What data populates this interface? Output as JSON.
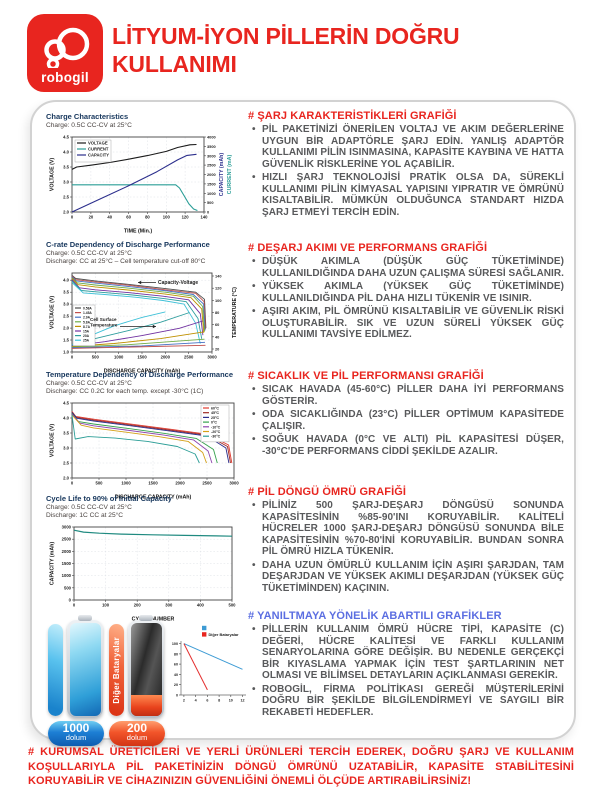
{
  "header": {
    "logo_text": "robogil",
    "title_line1": "LİTYUM-İYON PİLLERİN DOĞRU",
    "title_line2": "KULLANIMI"
  },
  "colors": {
    "brand_red": "#e8251f",
    "heading_blue": "#5b6ee1",
    "body_gray": "#58595b",
    "chart_title_navy": "#16365c",
    "teal": "#2a9d96",
    "navy": "#2b2e8c"
  },
  "sections": [
    {
      "heading": "# ŞARJ KARAKTERİSTİKLERİ GRAFİĞİ",
      "heading_color": "#e8251f",
      "bullets": [
        "PİL PAKETİNİZİ ÖNERİLEN VOLTAJ VE AKIM DEĞERLERİNE UYGUN BİR ADAPTÖRLE ŞARJ EDİN. YANLIŞ ADAPTÖR KULLANIMI PİLİN ISINMASINA, KAPASİTE KAYBINA VE HATTA GÜVENLİK RİSKLERİNE YOL AÇABİLİR.",
        "HIZLI ŞARJ TEKNOLOJİSİ PRATİK OLSA DA, SÜREKLİ KULLANIMI PİLİN KİMYASAL YAPISINI YIPRATIR VE ÖMRÜNÜ KISALTABİLİR. MÜMKÜN OLDUĞUNCA STANDART HIZDA ŞARJ ETMEYİ TERCİH EDİN."
      ]
    },
    {
      "heading": "# DEŞARJ AKIMI VE PERFORMANS GRAFİĞİ",
      "heading_color": "#e8251f",
      "bullets": [
        "DÜŞÜK AKIMLA (DÜŞÜK GÜÇ TÜKETİMİNDE) KULLANILDIĞINDA DAHA UZUN ÇALIŞMA SÜRESİ SAĞLANIR.",
        "YÜKSEK AKIMLA (YÜKSEK GÜÇ TÜKETİMİNDE) KULLANILDIĞINDA PİL DAHA HIZLI TÜKENİR VE ISINIR.",
        "AŞIRI AKIM, PİL ÖMRÜNÜ KISALTABİLİR VE GÜVENLİK RİSKİ OLUŞTURABİLİR. SIK VE UZUN SÜRELİ YÜKSEK GÜÇ KULLANIMI TAVSİYE EDİLMEZ."
      ]
    },
    {
      "heading": "# SICAKLIK VE PİL PERFORMANSI GRAFİĞİ",
      "heading_color": "#e8251f",
      "bullets": [
        "SICAK HAVADA (45-60°C) PİLLER DAHA İYİ PERFORMANS GÖSTERİR.",
        "ODA SICAKLIĞINDA (23°C) PİLLER OPTİMUM KAPASİTEDE ÇALIŞIR.",
        "SOĞUK HAVADA (0°C VE ALTI) PİL KAPASİTESİ DÜŞER, -30°C'DE PERFORMANS CİDDİ ŞEKİLDE AZALIR."
      ]
    },
    {
      "heading": "# PİL DÖNGÜ ÖMRÜ GRAFİĞİ",
      "heading_color": "#e8251f",
      "bullets": [
        "PİLİNİZ 500 ŞARJ-DEŞARJ DÖNGÜSÜ SONUNDA KAPASİTESİNİN %85-90'INI KORUYABİLİR. KALİTELİ HÜCRELER 1000 ŞARJ-DEŞARJ DÖNGÜSÜ SONUNDA BİLE KAPASİTESİNİN %70-80'İNİ KORUYABİLİR. BUNDAN SONRA PİL ÖMRÜ HIZLA TÜKENİR.",
        "DAHA UZUN ÖMÜRLÜ KULLANIM İÇİN AŞIRI ŞARJDAN, TAM DEŞARJDAN VE YÜKSEK AKIMLI DEŞARJDAN (YÜKSEK GÜÇ TÜKETİMİNDEN) KAÇININ."
      ]
    },
    {
      "heading": "# YANILTMAYA YÖNELİK ABARTILI GRAFİKLER",
      "heading_color": "#5b6ee1",
      "bullets": [
        "PİLLERİN KULLANIM ÖMRÜ HÜCRE TİPİ, KAPASİTE (C) DEĞERİ, HÜCRE KALİTESİ VE FARKLI KULLANIM SENARYOLARINA GÖRE DEĞİŞİR. BU NEDENLE GERÇEKÇİ BİR KIYASLAMA YAPMAK İÇİN TEST ŞARTLARININ NET OLMASI VE BİLİMSEL DETAYLARIN AÇIKLANMASI GEREKİR.",
        "ROBOGİL, FİRMA POLİTİKASI GEREĞİ MÜŞTERİLERİNİ DOĞRU BİR ŞEKİLDE BİLGİLENDİRMEYİ VE SAYGILI BİR REKABETİ HEDEFLER."
      ]
    }
  ],
  "footer": {
    "text": "# KURUMSAL ÜRETİCİLERİ VE YERLİ ÜRÜNLERİ TERCİH EDEREK, DOĞRU ŞARJ VE KULLANIM KOŞULLARIYLA PİL PAKETİNİZİN DÖNGÜ ÖMRÜNÜ UZATABİLİR, KAPASİTE STABİLİTESİNİ KORUYABİLİR VE CİHAZINIZIN GÜVENLİĞİNİ ÖNEMLİ ÖLÇÜDE ARTIRABİLİRSİNİZ!"
  },
  "battery_graphic": {
    "full_badge_value": "1000",
    "full_badge_unit": "dolum",
    "other_label": "Diğer Bataryalar",
    "low_badge_value": "200",
    "low_badge_unit": "dolum"
  },
  "chart_data": [
    {
      "type": "line",
      "title": "Charge Characteristics",
      "subtitle": "Charge: 0.5C CC-CV at 25°C",
      "xlabel": "TIME (Min.)",
      "ylabel": "VOLTAGE (V)",
      "ylabels_right": [
        {
          "text": "CAPACITY (mAh)",
          "color": "#2b2e8c"
        },
        {
          "text": "CURRENT (mA)",
          "color": "#2a9d96"
        }
      ],
      "xlim": [
        0,
        140
      ],
      "ylim": [
        2.0,
        4.5
      ],
      "ylim_right": [
        0,
        4000
      ],
      "xticks": [
        "0",
        "20",
        "40",
        "60",
        "80",
        "100",
        "120",
        "140"
      ],
      "yticks": [
        "2.0",
        "2.5",
        "3.0",
        "3.5",
        "4.0",
        "4.5"
      ],
      "yticks_right": [
        "0",
        "500",
        "1000",
        "1500",
        "2000",
        "2500",
        "3000",
        "3500",
        "4000"
      ],
      "legend": {
        "items": [
          {
            "label": "VOLTAGE",
            "color": "#1a1a1a"
          },
          {
            "label": "CURRENT",
            "color": "#2a9d96"
          },
          {
            "label": "CAPACITY",
            "color": "#2b2e8c"
          }
        ]
      },
      "series": [
        {
          "name": "VOLTAGE",
          "color": "#1a1a1a",
          "axis": "l",
          "w": 1.1,
          "x": [
            0,
            5,
            20,
            40,
            60,
            80,
            100,
            112,
            125,
            132
          ],
          "y": [
            3.42,
            3.5,
            3.56,
            3.65,
            3.76,
            3.88,
            4.02,
            4.15,
            4.24,
            4.25
          ]
        },
        {
          "name": "CURRENT",
          "color": "#2a9d96",
          "axis": "r",
          "w": 1.1,
          "x": [
            0,
            110,
            114,
            119,
            124,
            129,
            133
          ],
          "y": [
            1450,
            1450,
            1280,
            860,
            430,
            160,
            80
          ]
        },
        {
          "name": "CAPACITY",
          "color": "#2b2e8c",
          "axis": "r",
          "w": 1.1,
          "x": [
            0,
            30,
            60,
            90,
            112,
            122,
            132
          ],
          "y": [
            0,
            700,
            1400,
            2150,
            2780,
            3020,
            3080
          ]
        }
      ]
    },
    {
      "type": "line",
      "title": "C-rate Dependency of Discharge Performance",
      "subtitle": "Charge: 0.5C CC-CV at 25°C",
      "subtitle2": "Discharge: CC at 25°C – Cell temperature cut-off 80°C",
      "xlabel": "DISCHARGE CAPACITY (mAh)",
      "ylabel": "VOLTAGE (V)",
      "ylabels_right": [
        {
          "text": "TEMPERATURE (°C)",
          "color": "#111111"
        }
      ],
      "xlim": [
        0,
        3000
      ],
      "ylim": [
        1.0,
        4.3
      ],
      "ylim_right": [
        15,
        145
      ],
      "xticks": [
        "0",
        "500",
        "1000",
        "1500",
        "2000",
        "2500",
        "3000"
      ],
      "yticks": [
        "1.0",
        "1.5",
        "2.0",
        "2.5",
        "3.0",
        "3.5",
        "4.0"
      ],
      "yticks_right": [
        "20",
        "40",
        "60",
        "80",
        "100",
        "120",
        "140"
      ],
      "legend": {
        "items": [
          {
            "label": "0.58A",
            "color": "#4d4d4d"
          },
          {
            "label": "1.45A",
            "color": "#c0504d"
          },
          {
            "label": "2.9A",
            "color": "#4472c4"
          },
          {
            "label": "5.8A",
            "color": "#70ad47"
          },
          {
            "label": "8.7A",
            "color": "#bf9000"
          },
          {
            "label": "15A",
            "color": "#7030a0"
          },
          {
            "label": "20A",
            "color": "#2e9d9d"
          },
          {
            "label": "25A",
            "color": "#3fc1d8"
          }
        ]
      },
      "annotations": [
        {
          "text": "Capacity-Voltage"
        },
        {
          "text": "Cell Surface\nTemperature"
        }
      ],
      "series": [
        {
          "name": "0.58A V",
          "color": "#4d4d4d",
          "axis": "l",
          "x": [
            0,
            80,
            500,
            1200,
            2000,
            2650,
            2840,
            2870
          ],
          "y": [
            4.2,
            4.07,
            3.97,
            3.83,
            3.65,
            3.5,
            3.2,
            2.0
          ]
        },
        {
          "name": "1.45A V",
          "color": "#c0504d",
          "axis": "l",
          "x": [
            0,
            80,
            500,
            1200,
            2000,
            2650,
            2830,
            2860
          ],
          "y": [
            4.17,
            4.02,
            3.93,
            3.79,
            3.6,
            3.45,
            3.1,
            1.95
          ]
        },
        {
          "name": "2.9A V",
          "color": "#4472c4",
          "axis": "l",
          "x": [
            0,
            90,
            500,
            1200,
            2000,
            2600,
            2820,
            2850
          ],
          "y": [
            4.14,
            3.97,
            3.88,
            3.74,
            3.56,
            3.4,
            3.0,
            1.9
          ]
        },
        {
          "name": "5.8A V",
          "color": "#70ad47",
          "axis": "l",
          "x": [
            0,
            110,
            500,
            1200,
            2000,
            2600,
            2800,
            2840
          ],
          "y": [
            4.1,
            3.89,
            3.8,
            3.67,
            3.5,
            3.33,
            2.9,
            1.85
          ]
        },
        {
          "name": "8.7A V",
          "color": "#bf9000",
          "axis": "l",
          "x": [
            0,
            130,
            500,
            1200,
            2000,
            2550,
            2780,
            2825
          ],
          "y": [
            4.07,
            3.81,
            3.72,
            3.59,
            3.42,
            3.27,
            2.8,
            1.8
          ]
        },
        {
          "name": "15A V",
          "color": "#7030a0",
          "axis": "l",
          "x": [
            0,
            160,
            500,
            1200,
            1950,
            2500,
            2750,
            2805
          ],
          "y": [
            4.02,
            3.68,
            3.6,
            3.48,
            3.33,
            3.18,
            2.6,
            1.7
          ]
        },
        {
          "name": "20A V",
          "color": "#2e9d9d",
          "axis": "l",
          "x": [
            0,
            200,
            600,
            1300,
            1950,
            2450,
            2700,
            2780
          ],
          "y": [
            3.97,
            3.57,
            3.5,
            3.38,
            3.24,
            3.1,
            2.4,
            1.55
          ]
        },
        {
          "name": "25A V",
          "color": "#3fc1d8",
          "axis": "l",
          "x": [
            0,
            240,
            700,
            1400,
            1950,
            2400,
            2650,
            2750
          ],
          "y": [
            3.9,
            3.47,
            3.4,
            3.28,
            3.15,
            3.0,
            2.2,
            1.35
          ]
        },
        {
          "name": "25A T",
          "color": "#3fc1d8",
          "axis": "r",
          "x": [
            0,
            400,
            900,
            1500,
            2000
          ],
          "y": [
            27,
            42,
            58,
            72,
            81
          ]
        },
        {
          "name": "20A T",
          "color": "#2e9d9d",
          "axis": "r",
          "x": [
            0,
            500,
            1200,
            1900,
            2520
          ],
          "y": [
            26,
            37,
            50,
            64,
            80
          ]
        },
        {
          "name": "15A T",
          "color": "#7030a0",
          "axis": "r",
          "x": [
            0,
            700,
            1500,
            2300,
            2800
          ],
          "y": [
            25,
            32,
            42,
            54,
            66
          ]
        },
        {
          "name": "8.7A T",
          "color": "#bf9000",
          "axis": "r",
          "x": [
            0,
            900,
            1900,
            2820
          ],
          "y": [
            24,
            29,
            37,
            48
          ]
        },
        {
          "name": "5.8A T",
          "color": "#70ad47",
          "axis": "r",
          "x": [
            0,
            1200,
            2840
          ],
          "y": [
            23,
            27,
            36
          ]
        },
        {
          "name": "2.9A T",
          "color": "#4472c4",
          "axis": "r",
          "x": [
            0,
            1500,
            2850
          ],
          "y": [
            22,
            25,
            31
          ]
        },
        {
          "name": "1.45A T",
          "color": "#c0504d",
          "axis": "r",
          "x": [
            0,
            2860
          ],
          "y": [
            21,
            26
          ]
        }
      ]
    },
    {
      "type": "line",
      "title": "Temperature Dependency of Discharge Performance",
      "subtitle": "Charge: 0.5C CC-CV at 25°C",
      "subtitle2": "Discharge: CC 0.2C for each temp. except -30°C (1C)",
      "xlabel": "DISCHARGE CAPACITY (mAh)",
      "ylabel": "VOLTAGE (V)",
      "xlim": [
        0,
        3000
      ],
      "ylim": [
        2.0,
        4.5
      ],
      "xticks": [
        "0",
        "500",
        "1000",
        "1500",
        "2000",
        "2500",
        "3000"
      ],
      "yticks": [
        "2.0",
        "2.5",
        "3.0",
        "3.5",
        "4.0",
        "4.5"
      ],
      "legend": {
        "items": [
          {
            "label": "60°C",
            "color": "#e03c31"
          },
          {
            "label": "45°C",
            "color": "#9e2b25"
          },
          {
            "label": "25°C",
            "color": "#2b2e8c"
          },
          {
            "label": "0°C",
            "color": "#35a14c"
          },
          {
            "label": "-10°C",
            "color": "#8e44ad"
          },
          {
            "label": "-20°C",
            "color": "#d4a017"
          },
          {
            "label": "-30°C",
            "color": "#2a9d96"
          }
        ]
      },
      "series": [
        {
          "name": "60°C",
          "color": "#e03c31",
          "axis": "l",
          "x": [
            0,
            70,
            400,
            1000,
            1800,
            2500,
            2900,
            2960
          ],
          "y": [
            4.22,
            4.05,
            3.96,
            3.82,
            3.63,
            3.46,
            3.1,
            2.5
          ]
        },
        {
          "name": "45°C",
          "color": "#9e2b25",
          "axis": "l",
          "x": [
            0,
            80,
            400,
            1000,
            1800,
            2500,
            2880,
            2935
          ],
          "y": [
            4.2,
            4.02,
            3.93,
            3.79,
            3.6,
            3.43,
            3.05,
            2.5
          ]
        },
        {
          "name": "25°C",
          "color": "#2b2e8c",
          "axis": "l",
          "x": [
            0,
            90,
            400,
            1000,
            1800,
            2500,
            2850,
            2905
          ],
          "y": [
            4.18,
            3.99,
            3.9,
            3.76,
            3.57,
            3.4,
            3.0,
            2.5
          ]
        },
        {
          "name": "0°C",
          "color": "#35a14c",
          "axis": "l",
          "x": [
            0,
            120,
            400,
            1000,
            1700,
            2300,
            2620,
            2690
          ],
          "y": [
            4.15,
            3.88,
            3.8,
            3.66,
            3.49,
            3.32,
            2.95,
            2.5
          ]
        },
        {
          "name": "-10°C",
          "color": "#8e44ad",
          "axis": "l",
          "x": [
            0,
            140,
            400,
            1000,
            1700,
            2250,
            2520,
            2590
          ],
          "y": [
            4.13,
            3.83,
            3.74,
            3.6,
            3.43,
            3.27,
            2.9,
            2.5
          ]
        },
        {
          "name": "-20°C",
          "color": "#d4a017",
          "axis": "l",
          "x": [
            0,
            170,
            400,
            950,
            1600,
            2150,
            2420,
            2490
          ],
          "y": [
            4.1,
            3.76,
            3.67,
            3.54,
            3.38,
            3.22,
            2.85,
            2.5
          ]
        },
        {
          "name": "-30°C",
          "color": "#2a9d96",
          "axis": "l",
          "x": [
            0,
            60,
            300,
            800,
            1400,
            1950,
            2280,
            2360
          ],
          "y": [
            4.1,
            3.3,
            3.38,
            3.33,
            3.22,
            3.05,
            2.8,
            2.5
          ]
        }
      ]
    },
    {
      "type": "line",
      "title": "Cycle Life to 90% of Initial Capacity",
      "subtitle": "Charge: 0.5C CC-CV at 25°C",
      "subtitle2": "Discharge: 1C CC at 25°C",
      "xlabel": "CYCLE NUMBER",
      "ylabel": "CAPACITY (mAh)",
      "xlim": [
        0,
        500
      ],
      "ylim": [
        0,
        3000
      ],
      "xticks": [
        "0",
        "100",
        "200",
        "300",
        "400",
        "500"
      ],
      "yticks": [
        "0",
        "500",
        "1000",
        "1500",
        "2000",
        "2500",
        "3000"
      ],
      "series": [
        {
          "name": "capacity",
          "color": "#1f8a80",
          "axis": "l",
          "w": 1.2,
          "x": [
            0,
            30,
            80,
            150,
            250,
            350,
            450,
            500
          ],
          "y": [
            2870,
            2790,
            2745,
            2710,
            2680,
            2655,
            2635,
            2620
          ]
        }
      ]
    },
    {
      "type": "line",
      "title": "",
      "xlabel": "",
      "ylabel": "",
      "xlim": [
        1.5,
        12.6
      ],
      "ylim": [
        0,
        105
      ],
      "xticks": [
        "2",
        "4",
        "6",
        "8",
        "10",
        "12"
      ],
      "yticks": [
        "0",
        "20",
        "40",
        "60",
        "80",
        "100"
      ],
      "legend": {
        "items": [
          {
            "label": "",
            "color": "#3d9bd4"
          },
          {
            "label": "Diğer Bataryalar",
            "color": "#e8251f"
          }
        ]
      },
      "series": [
        {
          "name": "robogil",
          "color": "#3d9bd4",
          "axis": "l",
          "w": 1,
          "x": [
            2,
            12
          ],
          "y": [
            100,
            50
          ]
        },
        {
          "name": "diğer bataryalar",
          "color": "#e43030",
          "axis": "l",
          "w": 1,
          "x": [
            2,
            6
          ],
          "y": [
            100,
            10
          ]
        }
      ]
    }
  ]
}
